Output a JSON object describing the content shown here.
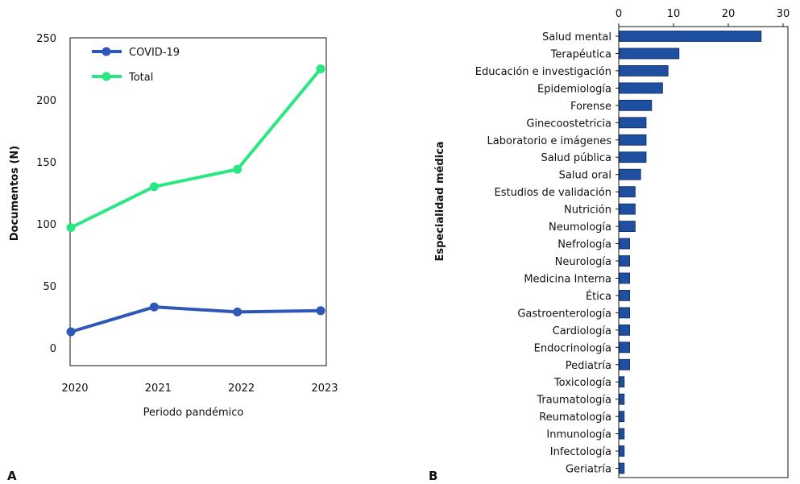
{
  "panel_labels": {
    "a": "A",
    "b": "B"
  },
  "chart_data": [
    {
      "type": "line",
      "title": "",
      "xlabel": "Periodo pandémico",
      "ylabel": "Documentos (N)",
      "categories": [
        "2020",
        "2021",
        "2022",
        "2023"
      ],
      "series": [
        {
          "name": "COVID-19",
          "values": [
            13,
            33,
            29,
            30
          ],
          "color": "#2e58b8"
        },
        {
          "name": "Total",
          "values": [
            97,
            130,
            144,
            225
          ],
          "color": "#29e882"
        }
      ],
      "ylim": [
        0,
        250
      ],
      "yticks": [
        0,
        50,
        100,
        150,
        200,
        250
      ],
      "grid": false,
      "legend_position": "top-left"
    },
    {
      "type": "bar",
      "orientation": "horizontal",
      "title": "",
      "xlabel": "",
      "ylabel": "Especialidad médica",
      "categories": [
        "Salud mental",
        "Terapéutica",
        "Educación e investigación",
        "Epidemiología",
        "Forense",
        "Ginecoostetricia",
        "Laboratorio e imágenes",
        "Salud pública",
        "Salud oral",
        "Estudios de validación",
        "Nutrición",
        "Neumología",
        "Nefrología",
        "Neurología",
        "Medicina Interna",
        "Ética",
        "Gastroenterología",
        "Cardiología",
        "Endocrinología",
        "Pediatría",
        "Toxicología",
        "Traumatología",
        "Reumatología",
        "Inmunología",
        "Infectología",
        "Geriatría"
      ],
      "values": [
        26,
        11,
        9,
        8,
        6,
        5,
        5,
        5,
        4,
        3,
        3,
        3,
        2,
        2,
        2,
        2,
        2,
        2,
        2,
        2,
        1,
        1,
        1,
        1,
        1,
        1
      ],
      "xlim": [
        0,
        30
      ],
      "xticks": [
        0,
        10,
        20,
        30
      ],
      "x_axis_position": "top",
      "bar_color": "#1f4fa0",
      "grid": false
    }
  ]
}
